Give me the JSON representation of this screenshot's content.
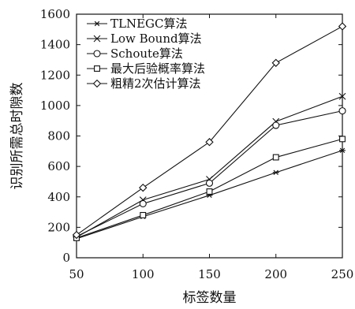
{
  "chart_data": {
    "type": "line",
    "title": "",
    "xlabel": "标签数量",
    "ylabel": "识别所需总时隙数",
    "x": [
      50,
      100,
      150,
      200,
      250
    ],
    "xlim": [
      50,
      250
    ],
    "ylim": [
      0,
      1600
    ],
    "xticks": [
      "50",
      "100",
      "150",
      "200",
      "250"
    ],
    "yticks": [
      "0",
      "200",
      "400",
      "600",
      "800",
      "1000",
      "1200",
      "1400",
      "1600"
    ],
    "grid": false,
    "legend": "top-left",
    "series": [
      {
        "name": "TLNEGC算法",
        "marker": "asterisk",
        "values": [
          125,
          270,
          410,
          560,
          705
        ]
      },
      {
        "name": "Low Bound算法",
        "marker": "x",
        "values": [
          135,
          380,
          515,
          895,
          1060
        ]
      },
      {
        "name": "Schoute算法",
        "marker": "circle",
        "values": [
          140,
          355,
          490,
          870,
          965
        ]
      },
      {
        "name": "最大后验概率算法",
        "marker": "square",
        "values": [
          130,
          280,
          435,
          660,
          780
        ]
      },
      {
        "name": "粗精2次估计算法",
        "marker": "diamond",
        "values": [
          150,
          460,
          760,
          1280,
          1520
        ]
      }
    ]
  }
}
